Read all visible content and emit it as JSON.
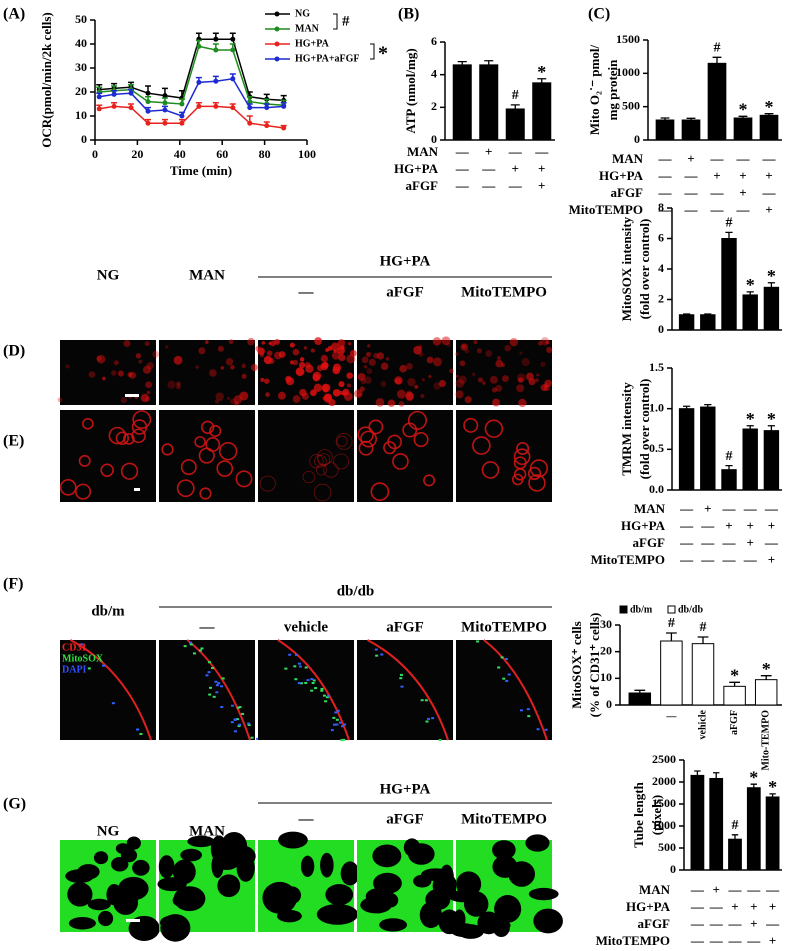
{
  "panel_labels": [
    "(A)",
    "(B)",
    "(C)",
    "(D)",
    "(E)",
    "(F)",
    "(G)"
  ],
  "image_panels": [
    {
      "labels": [
        "NG",
        "MAN"
      ],
      "group": "HG+PA",
      "group_labels": [
        "—",
        "aFGF",
        "MitoTEMPO"
      ]
    },
    {
      "labels": [
        "db/m"
      ],
      "group": "db/db",
      "group_labels": [
        "—",
        "vehicle",
        "aFGF",
        "MitoTEMPO"
      ],
      "stains": [
        "CD31",
        "MitoSOX",
        "DAPI"
      ]
    },
    {
      "labels": [
        "NG",
        "MAN"
      ],
      "group": "HG+PA",
      "group_labels": [
        "—",
        "aFGF",
        "MitoTEMPO"
      ]
    }
  ],
  "chart_data": [
    {
      "type": "line",
      "ylabel": "OCR(pmol/min/2k cells)",
      "xlabel": "Time (min)",
      "x": [
        2,
        9,
        17,
        25,
        33,
        41,
        49,
        57,
        65,
        73,
        81,
        89
      ],
      "xlim": [
        0,
        100
      ],
      "xticks": [
        0,
        20,
        40,
        60,
        80,
        100
      ],
      "ylim": [
        0,
        50
      ],
      "yticks": [
        0,
        10,
        20,
        30,
        40,
        50
      ],
      "series": [
        {
          "name": "NG",
          "color": "#000000",
          "values": [
            21,
            21.5,
            22,
            19.5,
            18.5,
            17.5,
            42,
            42,
            42,
            18,
            17,
            16.5
          ],
          "errors": [
            2,
            2,
            2,
            3,
            3,
            3,
            2.5,
            2.5,
            2.5,
            2,
            2,
            2
          ]
        },
        {
          "name": "MAN",
          "color": "#1e8c1e",
          "values": [
            20,
            20.5,
            21,
            16,
            15.5,
            15,
            39,
            37.5,
            37.5,
            16,
            15,
            14.5
          ],
          "errors": [
            2,
            2,
            2,
            2,
            2,
            2,
            2.5,
            2.5,
            2.5,
            2,
            2,
            2
          ]
        },
        {
          "name": "HG+PA",
          "color": "#e8231e",
          "values": [
            13,
            14,
            13.5,
            7,
            7,
            7,
            14,
            14,
            13.5,
            7,
            6,
            5
          ],
          "errors": [
            1.5,
            1.5,
            1.5,
            1.5,
            1.5,
            1.5,
            1.5,
            1.5,
            1.5,
            3,
            1.5,
            1
          ]
        },
        {
          "name": "HG+PA+aFGF",
          "color": "#1e2ad2",
          "values": [
            18,
            19,
            19.5,
            12,
            12.5,
            10,
            24,
            24.5,
            25.5,
            13.5,
            13.5,
            14
          ],
          "errors": [
            1.5,
            1.5,
            1.5,
            1.5,
            1.5,
            1.5,
            2,
            2,
            2,
            1.5,
            1.5,
            1.5
          ]
        }
      ],
      "annotations": [
        "#",
        "*"
      ]
    },
    {
      "type": "bar",
      "ylabel": [
        "ATP (nmol/mg)"
      ],
      "ylim": [
        0,
        6
      ],
      "yticks": [
        0,
        2,
        4,
        6
      ],
      "values": [
        4.6,
        4.6,
        1.9,
        3.5
      ],
      "errors": [
        0.2,
        0.25,
        0.25,
        0.25
      ],
      "marks": [
        null,
        null,
        "#",
        "*"
      ],
      "color": "#000000",
      "conditions": [
        {
          "label": "MAN",
          "signs": [
            "—",
            "+",
            "—",
            "—"
          ]
        },
        {
          "label": "HG+PA",
          "signs": [
            "—",
            "—",
            "+",
            "+"
          ]
        },
        {
          "label": "aFGF",
          "signs": [
            "—",
            "—",
            "—",
            "+"
          ]
        }
      ]
    },
    {
      "type": "bar",
      "ylabel": [
        "Mito O₂˙⁻ pmol/",
        "mg protein"
      ],
      "ylim": [
        0,
        1500
      ],
      "yticks": [
        0,
        500,
        1000,
        1500
      ],
      "values": [
        300,
        300,
        1150,
        330,
        370
      ],
      "errors": [
        30,
        25,
        90,
        25,
        25
      ],
      "marks": [
        null,
        null,
        "#",
        "*",
        "*"
      ],
      "color": "#000000",
      "conditions": [
        {
          "label": "MAN",
          "signs": [
            "—",
            "+",
            "—",
            "—",
            "—"
          ]
        },
        {
          "label": "HG+PA",
          "signs": [
            "—",
            "—",
            "+",
            "+",
            "+"
          ]
        },
        {
          "label": "aFGF",
          "signs": [
            "—",
            "—",
            "—",
            "+",
            "—"
          ]
        },
        {
          "label": "MitoTEMPO",
          "signs": [
            "—",
            "—",
            "—",
            "—",
            "+"
          ]
        }
      ]
    },
    {
      "type": "bar",
      "ylabel": [
        "MitoSOX intensity",
        "(fold over control)"
      ],
      "ylim": [
        0,
        8
      ],
      "yticks": [
        0,
        2,
        4,
        6,
        8
      ],
      "values": [
        1,
        1,
        6,
        2.3,
        2.8
      ],
      "errors": [
        0.05,
        0.05,
        0.4,
        0.2,
        0.3
      ],
      "marks": [
        null,
        null,
        "#",
        "*",
        "*"
      ],
      "color": "#000000"
    },
    {
      "type": "bar",
      "ylabel": [
        "TMRM intensity",
        "(fold over control)"
      ],
      "ylim": [
        0,
        1.5
      ],
      "yticks": [
        {
          "value": 0,
          "label": "0.0"
        },
        0.5,
        {
          "value": 1,
          "label": "1.0"
        },
        1.5
      ],
      "values": [
        1,
        1.02,
        0.25,
        0.75,
        0.73
      ],
      "errors": [
        0.03,
        0.03,
        0.05,
        0.04,
        0.06
      ],
      "marks": [
        null,
        null,
        "#",
        "*",
        "*"
      ],
      "color": "#000000",
      "conditions": [
        {
          "label": "MAN",
          "signs": [
            "—",
            "+",
            "—",
            "—",
            "—"
          ]
        },
        {
          "label": "HG+PA",
          "signs": [
            "—",
            "—",
            "+",
            "+",
            "+"
          ]
        },
        {
          "label": "aFGF",
          "signs": [
            "—",
            "—",
            "—",
            "+",
            "—"
          ]
        },
        {
          "label": "MitoTEMPO",
          "signs": [
            "—",
            "—",
            "—",
            "—",
            "+"
          ]
        }
      ]
    },
    {
      "type": "bar",
      "ylabel": [
        "MitoSOX⁺ cells",
        "(% of CD31⁺ cells)"
      ],
      "ylim": [
        0,
        30
      ],
      "yticks": [
        0,
        10,
        20,
        30
      ],
      "categories": [
        null,
        "—",
        "vehicle",
        "aFGF",
        "Mito-TEMPO"
      ],
      "values": [
        4.5,
        24,
        23,
        7,
        9.5
      ],
      "errors": [
        1,
        3,
        2.5,
        1.5,
        1.5
      ],
      "marks": [
        null,
        "#",
        "#",
        "*",
        "*"
      ],
      "colors": [
        "#000000",
        "#ffffff",
        "#ffffff",
        "#ffffff",
        "#ffffff"
      ],
      "legend": [
        {
          "name": "db/m",
          "color": "#000000"
        },
        {
          "name": "db/db",
          "color": "#ffffff"
        }
      ]
    },
    {
      "type": "bar",
      "ylabel": [
        "Tube length",
        "(pixels)"
      ],
      "ylim": [
        0,
        2500
      ],
      "yticks": [
        0,
        500,
        1000,
        1500,
        2000,
        2500
      ],
      "values": [
        2150,
        2080,
        700,
        1870,
        1660
      ],
      "errors": [
        100,
        130,
        100,
        80,
        70
      ],
      "marks": [
        null,
        null,
        "#",
        "*",
        "*"
      ],
      "color": "#000000",
      "conditions": [
        {
          "label": "MAN",
          "signs": [
            "—",
            "+",
            "—",
            "—",
            "—"
          ]
        },
        {
          "label": "HG+PA",
          "signs": [
            "—",
            "—",
            "+",
            "+",
            "+"
          ]
        },
        {
          "label": "aFGF",
          "signs": [
            "—",
            "—",
            "—",
            "+",
            "—"
          ]
        },
        {
          "label": "MitoTEMPO",
          "signs": [
            "—",
            "—",
            "—",
            "—",
            "+"
          ]
        }
      ]
    }
  ]
}
